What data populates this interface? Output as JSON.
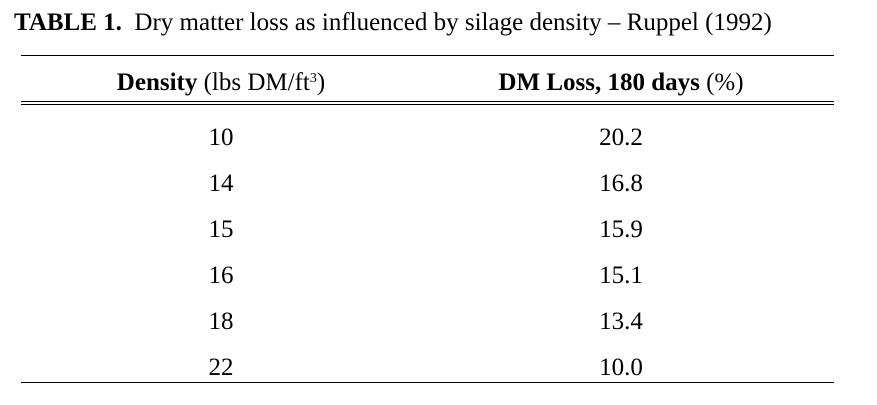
{
  "caption": {
    "label": "TABLE 1.",
    "text": "Dry matter loss as influenced by silage density – Ruppel (1992)"
  },
  "table": {
    "headers": {
      "density": {
        "bold": "Density",
        "rest": "(lbs DM/ft",
        "sup": "3",
        "close": ")"
      },
      "loss": {
        "bold": "DM Loss, 180 days",
        "rest": "(%)"
      }
    },
    "rows": [
      {
        "density": "10",
        "loss": "20.2"
      },
      {
        "density": "14",
        "loss": "16.8"
      },
      {
        "density": "15",
        "loss": "15.9"
      },
      {
        "density": "16",
        "loss": "15.1"
      },
      {
        "density": "18",
        "loss": "13.4"
      },
      {
        "density": "22",
        "loss": "10.0"
      }
    ]
  }
}
